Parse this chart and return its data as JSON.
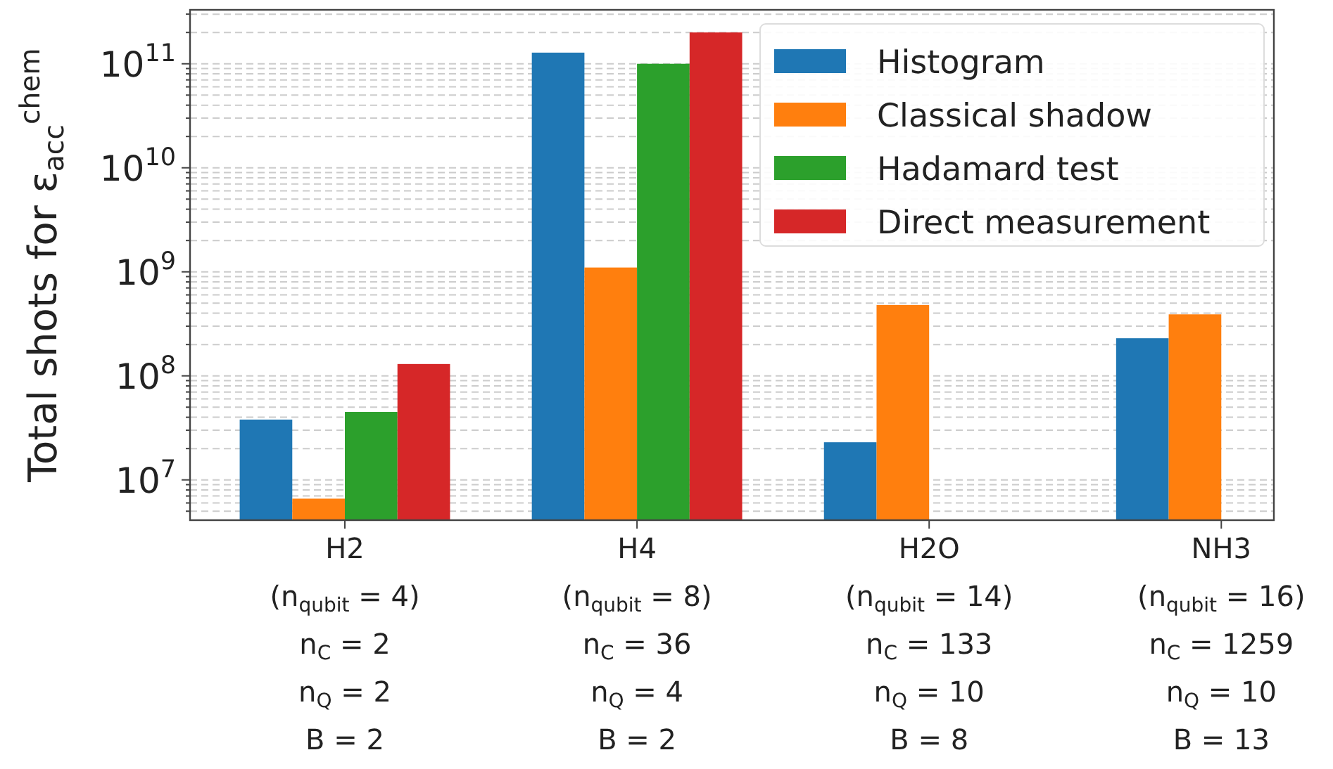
{
  "chart_data": {
    "type": "bar",
    "ylabel": "Total shots for ε$_{acc}$$^{chem}$",
    "categories": [
      "H2\n(n$_{qubit}$ = 4)\nn$_{C}$ = 2\nn$_{Q}$ = 2\nB = 2",
      "H4\n(n$_{qubit}$ = 8)\nn$_{C}$ = 36\nn$_{Q}$ = 4\nB = 2",
      "H2O\n(n$_{qubit}$ = 14)\nn$_{C}$ = 133\nn$_{Q}$ = 10\nB = 8",
      "NH3\n(n$_{qubit}$ = 16)\nn$_{C}$ = 1259\nn$_{Q}$ = 10\nB = 13"
    ],
    "series": [
      {
        "name": "Histogram",
        "color": "#1f77b4",
        "values": [
          38000000,
          128000000000,
          23000000,
          230000000
        ]
      },
      {
        "name": "Classical shadow",
        "color": "#ff7f0e",
        "values": [
          6600000,
          1100000000,
          480000000,
          390000000
        ]
      },
      {
        "name": "Hadamard test",
        "color": "#2ca02c",
        "values": [
          45000000,
          100000000000,
          null,
          null
        ]
      },
      {
        "name": "Direct measurement",
        "color": "#d62728",
        "values": [
          130000000,
          200000000000,
          null,
          null
        ]
      }
    ],
    "log": true,
    "ylim": [
      4100000,
      330000000000
    ],
    "yticks": [
      {
        "value": 5000000,
        "label": null
      },
      {
        "value": 6000000,
        "label": null
      },
      {
        "value": 7000000,
        "label": null
      },
      {
        "value": 8000000,
        "label": null
      },
      {
        "value": 9000000,
        "label": null
      },
      {
        "value": 10000000,
        "label": "10$^{7}$"
      },
      {
        "value": 20000000,
        "label": null
      },
      {
        "value": 30000000,
        "label": null
      },
      {
        "value": 40000000,
        "label": null
      },
      {
        "value": 50000000,
        "label": null
      },
      {
        "value": 60000000,
        "label": null
      },
      {
        "value": 70000000,
        "label": null
      },
      {
        "value": 80000000,
        "label": null
      },
      {
        "value": 90000000,
        "label": null
      },
      {
        "value": 100000000,
        "label": "10$^{8}$"
      },
      {
        "value": 200000000,
        "label": null
      },
      {
        "value": 300000000,
        "label": null
      },
      {
        "value": 400000000,
        "label": null
      },
      {
        "value": 500000000,
        "label": null
      },
      {
        "value": 600000000,
        "label": null
      },
      {
        "value": 700000000,
        "label": null
      },
      {
        "value": 800000000,
        "label": null
      },
      {
        "value": 900000000,
        "label": null
      },
      {
        "value": 1000000000,
        "label": "10$^{9}$"
      },
      {
        "value": 2000000000,
        "label": null
      },
      {
        "value": 3000000000,
        "label": null
      },
      {
        "value": 4000000000,
        "label": null
      },
      {
        "value": 5000000000,
        "label": null
      },
      {
        "value": 6000000000,
        "label": null
      },
      {
        "value": 7000000000,
        "label": null
      },
      {
        "value": 8000000000,
        "label": null
      },
      {
        "value": 9000000000,
        "label": null
      },
      {
        "value": 10000000000,
        "label": "10$^{10}$"
      },
      {
        "value": 20000000000,
        "label": null
      },
      {
        "value": 30000000000,
        "label": null
      },
      {
        "value": 40000000000,
        "label": null
      },
      {
        "value": 50000000000,
        "label": null
      },
      {
        "value": 60000000000,
        "label": null
      },
      {
        "value": 70000000000,
        "label": null
      },
      {
        "value": 80000000000,
        "label": null
      },
      {
        "value": 90000000000,
        "label": null
      },
      {
        "value": 100000000000,
        "label": "10$^{11}$"
      },
      {
        "value": 200000000000,
        "label": null
      },
      {
        "value": 300000000000,
        "label": null
      }
    ],
    "grid": true,
    "legend": "top right"
  }
}
